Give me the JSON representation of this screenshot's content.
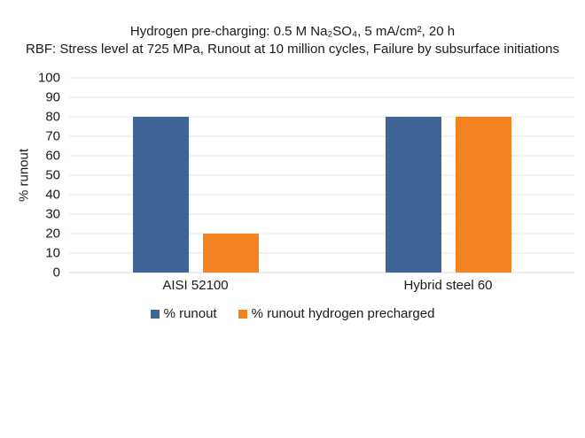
{
  "chart_data": {
    "type": "bar",
    "title": "Hydrogen pre-charging: 0.5 M Na₂SO₄, 5 mA/cm², 20 h",
    "subtitle": "RBF: Stress level at 725 MPa, Runout at 10 million cycles, Failure by subsurface initiations",
    "categories": [
      "AISI 52100",
      "Hybrid steel 60"
    ],
    "series": [
      {
        "name": "% runout",
        "color": "#3E6498",
        "values": [
          80,
          80
        ]
      },
      {
        "name": "% runout hydrogen precharged",
        "color": "#F28222",
        "values": [
          20,
          80
        ]
      }
    ],
    "xlabel": "",
    "ylabel": "% runout",
    "ylim": [
      0,
      100
    ],
    "yticks": [
      0,
      10,
      20,
      30,
      40,
      50,
      60,
      70,
      80,
      90,
      100
    ],
    "grid": true,
    "legend_position": "bottom",
    "colors": {
      "grid": "#E4E4E4",
      "baseline": "#D9D9D9",
      "text": "#1A1A1A",
      "background": "#FFFFFF"
    }
  }
}
